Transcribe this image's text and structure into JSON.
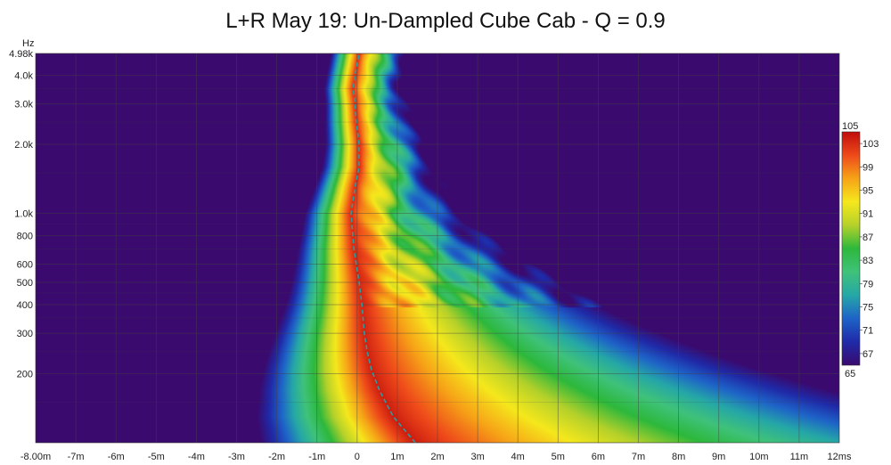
{
  "chart_data": {
    "type": "heatmap",
    "title": "L+R May 19: Un-Dampled Cube Cab - Q = 0.9",
    "ylabel_unit": "Hz",
    "y_scale": "log",
    "ylim": [
      100,
      4980
    ],
    "y_ticks": [
      {
        "v": 4980,
        "label": "4.98k"
      },
      {
        "v": 4000,
        "label": "4.0k"
      },
      {
        "v": 3000,
        "label": "3.0k"
      },
      {
        "v": 2000,
        "label": "2.0k"
      },
      {
        "v": 1000,
        "label": "1.0k"
      },
      {
        "v": 800,
        "label": "800"
      },
      {
        "v": 600,
        "label": "600"
      },
      {
        "v": 500,
        "label": "500"
      },
      {
        "v": 400,
        "label": "400"
      },
      {
        "v": 300,
        "label": "300"
      },
      {
        "v": 200,
        "label": "200"
      }
    ],
    "xlim": [
      -8,
      12
    ],
    "x_ticks": [
      {
        "v": -8,
        "label": "-8.00m"
      },
      {
        "v": -7,
        "label": "-7m"
      },
      {
        "v": -6,
        "label": "-6m"
      },
      {
        "v": -5,
        "label": "-5m"
      },
      {
        "v": -4,
        "label": "-4m"
      },
      {
        "v": -3,
        "label": "-3m"
      },
      {
        "v": -2,
        "label": "-2m"
      },
      {
        "v": -1,
        "label": "-1m"
      },
      {
        "v": 0,
        "label": "0"
      },
      {
        "v": 1,
        "label": "1m"
      },
      {
        "v": 2,
        "label": "2m"
      },
      {
        "v": 3,
        "label": "3m"
      },
      {
        "v": 4,
        "label": "4m"
      },
      {
        "v": 5,
        "label": "5m"
      },
      {
        "v": 6,
        "label": "6m"
      },
      {
        "v": 7,
        "label": "7m"
      },
      {
        "v": 8,
        "label": "8m"
      },
      {
        "v": 9,
        "label": "9m"
      },
      {
        "v": 10,
        "label": "10m"
      },
      {
        "v": 11,
        "label": "11m"
      },
      {
        "v": 12,
        "label": "12ms"
      }
    ],
    "colorbar": {
      "min": 65,
      "max": 105,
      "tick_labels": [
        "105",
        "103",
        "99",
        "95",
        "91",
        "87",
        "83",
        "79",
        "75",
        "71",
        "67",
        "65"
      ],
      "tick_values": [
        105,
        103,
        99,
        95,
        91,
        87,
        83,
        79,
        75,
        71,
        67,
        65
      ],
      "colors": [
        "#3a0a6e",
        "#1f2aa8",
        "#1e63c8",
        "#25a7a7",
        "#3fc27a",
        "#2db83c",
        "#b5d12a",
        "#f5e81c",
        "#f6a317",
        "#ee4a1a",
        "#c00d0d"
      ]
    },
    "peak_energy_curve": [
      {
        "f": 100,
        "t": 1.45
      },
      {
        "f": 130,
        "t": 0.9
      },
      {
        "f": 170,
        "t": 0.55
      },
      {
        "f": 210,
        "t": 0.35
      },
      {
        "f": 250,
        "t": 0.25
      },
      {
        "f": 300,
        "t": 0.18
      },
      {
        "f": 400,
        "t": 0.12
      },
      {
        "f": 500,
        "t": 0.05
      },
      {
        "f": 700,
        "t": -0.08
      },
      {
        "f": 1000,
        "t": -0.15
      },
      {
        "f": 1300,
        "t": -0.05
      },
      {
        "f": 1600,
        "t": 0.05
      },
      {
        "f": 2000,
        "t": 0.05
      },
      {
        "f": 2500,
        "t": -0.02
      },
      {
        "f": 3000,
        "t": -0.05
      },
      {
        "f": 3500,
        "t": -0.1
      },
      {
        "f": 4000,
        "t": -0.05
      },
      {
        "f": 4980,
        "t": 0.05
      }
    ],
    "grid": true
  }
}
